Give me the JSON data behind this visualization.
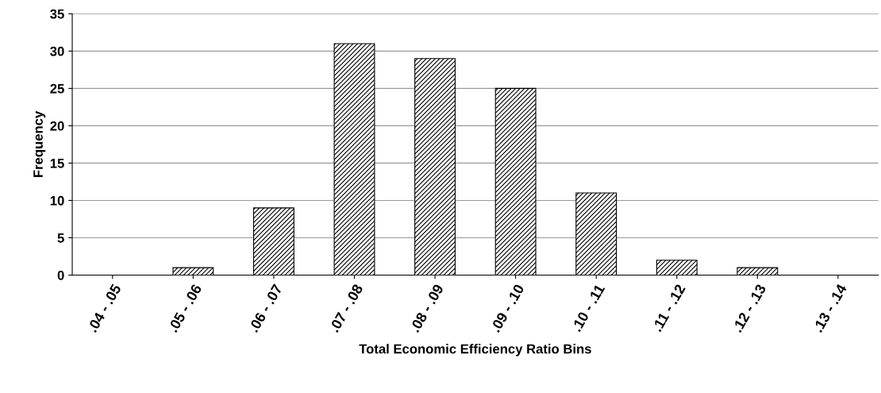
{
  "chart_data": {
    "type": "bar",
    "xlabel": "Total Economic Efficiency Ratio Bins",
    "ylabel": "Frequency",
    "categories": [
      ".04 - .05",
      ".05 - .06",
      ".06 - .07",
      ".07 - .08",
      ".08 - .09",
      ".09 - .10",
      ".10 - .11",
      ".11 - .12",
      ".12 - .13",
      ".13 - .14"
    ],
    "values": [
      0,
      1,
      9,
      31,
      29,
      25,
      11,
      2,
      1,
      0
    ],
    "color": "#000000",
    "ylim": [
      0,
      35
    ],
    "yticks": [
      0,
      5,
      10,
      15,
      20,
      25,
      30,
      35
    ],
    "grid": "y",
    "legend": false
  }
}
